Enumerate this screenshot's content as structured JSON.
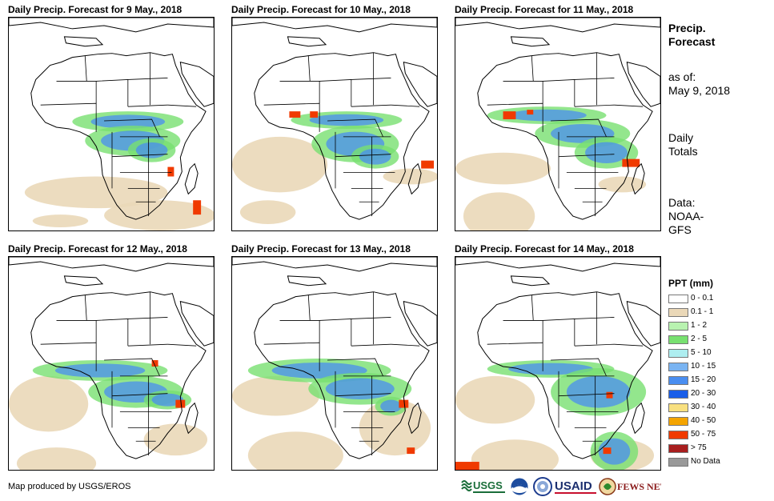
{
  "panels": [
    {
      "title": "Daily Precip. Forecast for 9 May., 2018"
    },
    {
      "title": "Daily Precip. Forecast for 10 May., 2018"
    },
    {
      "title": "Daily Precip. Forecast for 11 May., 2018"
    },
    {
      "title": "Daily Precip. Forecast for 12 May., 2018"
    },
    {
      "title": "Daily Precip. Forecast for 13 May., 2018"
    },
    {
      "title": "Daily Precip. Forecast for 14 May., 2018"
    }
  ],
  "side": {
    "title_line1": "Precip.",
    "title_line2": "Forecast",
    "asof_label": "as of:",
    "asof_date": "May 9, 2018",
    "totals_line1": "Daily",
    "totals_line2": "Totals",
    "data_line1": "Data:",
    "data_line2": "NOAA-",
    "data_line3": "GFS"
  },
  "legend": {
    "title": "PPT (mm)",
    "items": [
      {
        "label": "0 - 0.1",
        "color": "#ffffff"
      },
      {
        "label": "0.1 - 1",
        "color": "#ead8b8"
      },
      {
        "label": "1 - 2",
        "color": "#b8f2b0"
      },
      {
        "label": "2 - 5",
        "color": "#78e070"
      },
      {
        "label": "5 - 10",
        "color": "#aeeef0"
      },
      {
        "label": "10 - 15",
        "color": "#7ab4f2"
      },
      {
        "label": "15 - 20",
        "color": "#4a8ef0"
      },
      {
        "label": "20 - 30",
        "color": "#1a5ee8"
      },
      {
        "label": "30 - 40",
        "color": "#f8e080"
      },
      {
        "label": "40 - 50",
        "color": "#f4a400"
      },
      {
        "label": "50 - 75",
        "color": "#f03a00"
      },
      {
        "label": "> 75",
        "color": "#a81e1e"
      },
      {
        "label": "No Data",
        "color": "#999999"
      }
    ]
  },
  "footer": {
    "text": "Map produced by USGS/EROS"
  },
  "logos": {
    "usgs": "USGS",
    "usaid": "USAID",
    "fewsnet": "FEWS NET"
  }
}
